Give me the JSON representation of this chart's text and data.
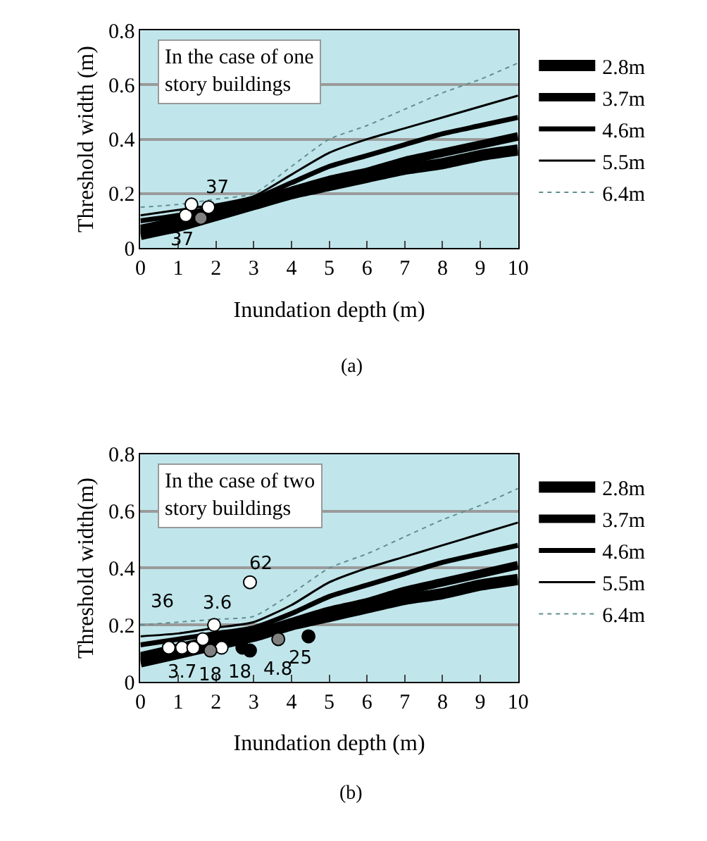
{
  "chart_data": [
    {
      "type": "line",
      "xlabel": "Inundation depth (m)",
      "ylabel": "Threshold width (m)",
      "xlim": [
        0,
        10
      ],
      "ylim": [
        0,
        0.8
      ],
      "xticks": [
        0,
        1,
        2,
        3,
        4,
        5,
        6,
        7,
        8,
        9,
        10
      ],
      "yticks": [
        0,
        0.2,
        0.4,
        0.6,
        0.8
      ],
      "grid": "y",
      "legend": "right",
      "marker": "none",
      "x": [
        0,
        1,
        2,
        3,
        4,
        5,
        6,
        7,
        8,
        9,
        10
      ],
      "series": [
        {
          "name": "2.8m",
          "color": "#000000",
          "line_style": "solid",
          "values": [
            0.05,
            0.08,
            0.12,
            0.16,
            0.2,
            0.23,
            0.26,
            0.29,
            0.31,
            0.34,
            0.36
          ]
        },
        {
          "name": "3.7m",
          "color": "#000000",
          "line_style": "solid",
          "values": [
            0.07,
            0.1,
            0.13,
            0.17,
            0.21,
            0.25,
            0.28,
            0.32,
            0.35,
            0.38,
            0.41
          ]
        },
        {
          "name": "4.6m",
          "color": "#000000",
          "line_style": "solid",
          "values": [
            0.1,
            0.12,
            0.15,
            0.18,
            0.24,
            0.3,
            0.34,
            0.38,
            0.42,
            0.45,
            0.48
          ]
        },
        {
          "name": "5.5m",
          "color": "#000000",
          "line_style": "solid",
          "values": [
            0.12,
            0.14,
            0.16,
            0.19,
            0.27,
            0.35,
            0.4,
            0.44,
            0.48,
            0.52,
            0.56
          ]
        },
        {
          "name": "6.4m",
          "color": "#5f8f90",
          "line_style": "dotted",
          "values": [
            0.15,
            0.16,
            0.18,
            0.2,
            0.3,
            0.4,
            0.45,
            0.51,
            0.57,
            0.62,
            0.68
          ]
        },
        {
          "type": "scatter",
          "marker": "circle",
          "color": "#ffffff",
          "x": [
            1.2,
            1.35,
            1.8
          ],
          "values": [
            0.12,
            0.16,
            0.15
          ]
        },
        {
          "type": "scatter",
          "marker": "circle",
          "color": "#808080",
          "x": [
            1.6
          ],
          "values": [
            0.11
          ]
        }
      ],
      "annotations": [
        "In the case of one story buildings",
        {
          "text": "37",
          "x": 1.8,
          "y": 0.15
        },
        {
          "text": "37",
          "x": 1.2,
          "y": 0.12
        },
        "(a)"
      ]
    },
    {
      "type": "line",
      "xlabel": "Inundation depth (m)",
      "ylabel": "Threshold width(m)",
      "xlim": [
        0,
        10
      ],
      "ylim": [
        0,
        0.8
      ],
      "xticks": [
        0,
        1,
        2,
        3,
        4,
        5,
        6,
        7,
        8,
        9,
        10
      ],
      "yticks": [
        0,
        0.2,
        0.4,
        0.6,
        0.8
      ],
      "grid": "y",
      "legend": "right",
      "marker": "none",
      "x": [
        0,
        1,
        2,
        3,
        4,
        5,
        6,
        7,
        8,
        9,
        10
      ],
      "series": [
        {
          "name": "2.8m",
          "color": "#000000",
          "line_style": "solid",
          "values": [
            0.07,
            0.1,
            0.13,
            0.16,
            0.2,
            0.23,
            0.26,
            0.29,
            0.31,
            0.34,
            0.36
          ]
        },
        {
          "name": "3.7m",
          "color": "#000000",
          "line_style": "solid",
          "values": [
            0.09,
            0.12,
            0.15,
            0.17,
            0.21,
            0.25,
            0.28,
            0.32,
            0.35,
            0.38,
            0.41
          ]
        },
        {
          "name": "4.6m",
          "color": "#000000",
          "line_style": "solid",
          "values": [
            0.13,
            0.15,
            0.17,
            0.19,
            0.24,
            0.3,
            0.34,
            0.38,
            0.42,
            0.45,
            0.48
          ]
        },
        {
          "name": "5.5m",
          "color": "#000000",
          "line_style": "solid",
          "values": [
            0.16,
            0.17,
            0.19,
            0.21,
            0.27,
            0.35,
            0.4,
            0.44,
            0.48,
            0.52,
            0.56
          ]
        },
        {
          "name": "6.4m",
          "color": "#5f8f90",
          "line_style": "dotted",
          "values": [
            0.2,
            0.21,
            0.22,
            0.23,
            0.31,
            0.4,
            0.45,
            0.51,
            0.57,
            0.62,
            0.68
          ]
        },
        {
          "type": "scatter",
          "marker": "circle",
          "color": "#ffffff",
          "x": [
            0.75,
            1.1,
            1.4,
            1.65,
            1.95,
            2.15,
            2.9
          ],
          "values": [
            0.12,
            0.12,
            0.12,
            0.15,
            0.2,
            0.12,
            0.35
          ]
        },
        {
          "type": "scatter",
          "marker": "circle",
          "color": "#808080",
          "x": [
            1.85,
            3.65
          ],
          "values": [
            0.11,
            0.15
          ]
        },
        {
          "type": "scatter",
          "marker": "circle",
          "color": "#000000",
          "x": [
            2.7,
            2.9,
            4.45
          ],
          "values": [
            0.12,
            0.11,
            0.16
          ]
        }
      ],
      "annotations": [
        "In the case of two story buildings",
        {
          "text": "36",
          "x": 0.75,
          "y": 0.12
        },
        {
          "text": "3.6",
          "x": 1.95,
          "y": 0.2
        },
        {
          "text": "3.7",
          "x": 1.1,
          "y": 0.12
        },
        {
          "text": "18",
          "x": 1.85,
          "y": 0.11
        },
        {
          "text": "18",
          "x": 2.7,
          "y": 0.12
        },
        {
          "text": "4.8",
          "x": 2.9,
          "y": 0.11
        },
        {
          "text": "25",
          "x": 3.65,
          "y": 0.15
        },
        {
          "text": "62",
          "x": 2.9,
          "y": 0.35
        },
        "(b)"
      ]
    }
  ]
}
